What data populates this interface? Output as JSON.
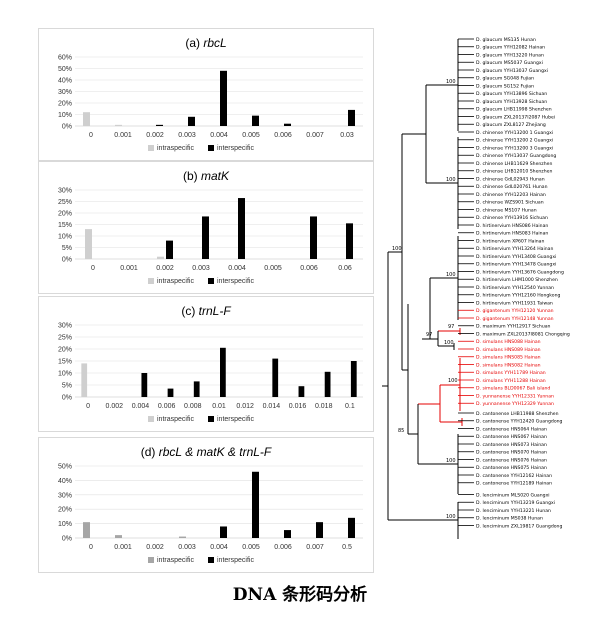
{
  "chart_data": [
    {
      "type": "bar",
      "title_prefix": "(a) ",
      "title_gene": "rbcL",
      "title_suffix": "",
      "categories": [
        "0",
        "0.001",
        "0.002",
        "0.003",
        "0.004",
        "0.005",
        "0.006",
        "0.007",
        "0.03"
      ],
      "yticks": [
        "0%",
        "10%",
        "20%",
        "30%",
        "40%",
        "50%",
        "60%"
      ],
      "ylim": [
        0,
        60
      ],
      "series": [
        {
          "name": "intraspecific",
          "values": [
            12,
            1,
            0,
            0,
            0,
            0,
            0,
            0,
            0
          ]
        },
        {
          "name": "interspecific",
          "values": [
            0,
            0,
            1,
            8,
            48,
            9,
            2,
            0,
            14
          ]
        }
      ],
      "legend_position": "bottom"
    },
    {
      "type": "bar",
      "title_prefix": "(b) ",
      "title_gene": "matK",
      "title_suffix": "",
      "categories": [
        "0",
        "0.001",
        "0.002",
        "0.003",
        "0.004",
        "0.005",
        "0.006",
        "0.06"
      ],
      "yticks": [
        "0%",
        "5%",
        "10%",
        "15%",
        "20%",
        "25%",
        "30%"
      ],
      "ylim": [
        0,
        30
      ],
      "series": [
        {
          "name": "intraspecific",
          "values": [
            13,
            0,
            1,
            0,
            0,
            0,
            0,
            0
          ]
        },
        {
          "name": "interspecific",
          "values": [
            0,
            0,
            8,
            18.5,
            26.5,
            0,
            18.5,
            15.5
          ]
        }
      ],
      "legend_position": "bottom"
    },
    {
      "type": "bar",
      "title_prefix": "(c) ",
      "title_gene": "trnL-F",
      "title_suffix": "",
      "categories": [
        "0",
        "0.002",
        "0.004",
        "0.006",
        "0.008",
        "0.01",
        "0.012",
        "0.014",
        "0.016",
        "0.018",
        "0.1"
      ],
      "yticks": [
        "0%",
        "5%",
        "10%",
        "15%",
        "20%",
        "25%",
        "30%"
      ],
      "ylim": [
        0,
        30
      ],
      "series": [
        {
          "name": "intraspecific",
          "values": [
            14,
            0,
            0,
            0,
            0,
            0,
            0,
            0,
            0,
            0,
            0
          ]
        },
        {
          "name": "interspecific",
          "values": [
            0,
            0,
            10,
            3.5,
            6.5,
            20.5,
            0,
            16,
            4.5,
            10.5,
            15
          ]
        }
      ],
      "legend_position": "bottom"
    },
    {
      "type": "bar",
      "title_prefix": "(d) ",
      "title_gene": "rbcL",
      "title_suffix": " & matK & trnL-F",
      "categories": [
        "0",
        "0.001",
        "0.002",
        "0.003",
        "0.004",
        "0.005",
        "0.006",
        "0.007",
        "0.5"
      ],
      "yticks": [
        "0%",
        "10%",
        "20%",
        "30%",
        "40%",
        "50%"
      ],
      "ylim": [
        0,
        50
      ],
      "series": [
        {
          "name": "intraspecific",
          "values": [
            11,
            2,
            0,
            1,
            0,
            0,
            0,
            0,
            0
          ]
        },
        {
          "name": "interspecific",
          "values": [
            0,
            0,
            0,
            0,
            8,
            46,
            5.5,
            11,
            14
          ]
        }
      ],
      "legend_position": "bottom"
    }
  ],
  "colors": {
    "intraspecific": "#cfcfcf",
    "intraspecific_d": "#a6a6a6",
    "interspecific": "#000000",
    "highlight": "#e60000",
    "grid": "#e0e0e0"
  },
  "tree": {
    "taxa": [
      {
        "label": "D. glaucum MS135 Hunan",
        "red": false
      },
      {
        "label": "D. glaucum YYH12082 Hainan",
        "red": false
      },
      {
        "label": "D. glaucum YYH13220 Hunan",
        "red": false
      },
      {
        "label": "D. glaucum MS5037 Guangxi",
        "red": false
      },
      {
        "label": "D. glaucum YYH13037 Guangxi",
        "red": false
      },
      {
        "label": "D. glaucum SG048 Fujian",
        "red": false
      },
      {
        "label": "D. glaucum SG152 Fujian",
        "red": false
      },
      {
        "label": "D. glaucum YYH13896 Sichuan",
        "red": false
      },
      {
        "label": "D. glaucum YYH13928 Sichuan",
        "red": false
      },
      {
        "label": "D. glaucum LHB11998 Shenzhen",
        "red": false
      },
      {
        "label": "D. glaucum ZXL20137I2087 Hubei",
        "red": false
      },
      {
        "label": "D. glaucum ZXL8127 Zhejiang",
        "red": false
      },
      {
        "label": "D. chinense YYH13200 1 Guangxi",
        "red": false
      },
      {
        "label": "D. chinense YYH13200 2 Guangxi",
        "red": false
      },
      {
        "label": "D. chinense YYH13200 3 Guangxi",
        "red": false
      },
      {
        "label": "D. chinense YYH13037 Guangdong",
        "red": false
      },
      {
        "label": "D. chinense LHB11629 Shenzhen",
        "red": false
      },
      {
        "label": "D. chinense LHB12010 Shenzhen",
        "red": false
      },
      {
        "label": "D. chinense GdL02943 Hunan",
        "red": false
      },
      {
        "label": "D. chinense GdL020761 Hunan",
        "red": false
      },
      {
        "label": "D. chinense YYH12203 Hainan",
        "red": false
      },
      {
        "label": "D. chinense WZS901 Sichuan",
        "red": false
      },
      {
        "label": "D. chinense MS107 Hunan",
        "red": false
      },
      {
        "label": "D. chinense YYH13916 Sichuan",
        "red": false
      },
      {
        "label": "D. hirtinervium HNS086 Hainan",
        "red": false
      },
      {
        "label": "D. hirtinervium HNS083 Hainan",
        "red": false
      },
      {
        "label": "D. hirtinervium XP607 Hainan",
        "red": false
      },
      {
        "label": "D. hirtinervium YYH13264 Hainan",
        "red": false
      },
      {
        "label": "D. hirtinervium YYH13408 Guangxi",
        "red": false
      },
      {
        "label": "D. hirtinervium YYH13478 Guangxi",
        "red": false
      },
      {
        "label": "D. hirtinervium YYH13676 Guangdong",
        "red": false
      },
      {
        "label": "D. hirtinervium LHM1000 Shenzhen",
        "red": false
      },
      {
        "label": "D. hirtinervium YYH12540 Yunnan",
        "red": false
      },
      {
        "label": "D. hirtinervium YYH12160 Hongkong",
        "red": false
      },
      {
        "label": "D. hirtinervium YYH11931 Taiwan",
        "red": false
      },
      {
        "label": "D. gigantenum YYH12120 Yunnan",
        "red": true
      },
      {
        "label": "D. gigantenum YYH12148 Yunnan",
        "red": true
      },
      {
        "label": "D. maximum YYH12917 Sichuan",
        "red": false
      },
      {
        "label": "D. maximum ZXL20137I8081 Chongqing",
        "red": false
      },
      {
        "label": "D. simulans HNS088 Hainan",
        "red": true
      },
      {
        "label": "D. simulans HNS089 Hainan",
        "red": true
      },
      {
        "label": "D. simulans HNS085 Hainan",
        "red": true
      },
      {
        "label": "D. simulans HNS082 Hainan",
        "red": true
      },
      {
        "label": "D. simulans YYH11789 Hainan",
        "red": true
      },
      {
        "label": "D. simulans YYH11288 Hainan",
        "red": true
      },
      {
        "label": "D. simulans BLD0067 Bali island",
        "red": true
      },
      {
        "label": "D. yunnanense YYH12331 Yunnan",
        "red": true
      },
      {
        "label": "D. yunnanense YYH12329 Yunnan",
        "red": true
      },
      {
        "label": "D. cantonense LHB11988 Shenzhen",
        "red": false
      },
      {
        "label": "D. cantonense YYH12420 Guangdong",
        "red": false
      },
      {
        "label": "D. cantonense HNS064 Hainan",
        "red": false
      },
      {
        "label": "D. cantonense HNS067 Hainan",
        "red": false
      },
      {
        "label": "D. cantonense HNS073 Hainan",
        "red": false
      },
      {
        "label": "D. cantonense HNS070 Hainan",
        "red": false
      },
      {
        "label": "D. cantonense HNS076 Hainan",
        "red": false
      },
      {
        "label": "D. cantonense HNS075 Hainan",
        "red": false
      },
      {
        "label": "D. cantonense YYH12162 Hainan",
        "red": false
      },
      {
        "label": "D. cantonense YYH12189 Hainan",
        "red": false
      },
      {
        "label": "D. lenciminum MLS020 Guangxi",
        "red": false
      },
      {
        "label": "D. lenciminum YYH13219 Guangxi",
        "red": false
      },
      {
        "label": "D. lenciminum YYH13221 Hunan",
        "red": false
      },
      {
        "label": "D. lenciminum MS038 Hunan",
        "red": false
      },
      {
        "label": "D. lenciminum ZXL19817 Guangdong",
        "red": false
      }
    ],
    "support": [
      {
        "id": "s1",
        "value": "100"
      },
      {
        "id": "s2",
        "value": "100"
      },
      {
        "id": "s3",
        "value": "100"
      },
      {
        "id": "s4",
        "value": "97"
      },
      {
        "id": "s5",
        "value": "97"
      },
      {
        "id": "s6",
        "value": "100"
      },
      {
        "id": "s7",
        "value": "100"
      },
      {
        "id": "s8",
        "value": "100"
      },
      {
        "id": "s9",
        "value": "85"
      },
      {
        "id": "s10",
        "value": "100"
      },
      {
        "id": "s11",
        "value": "100"
      }
    ]
  },
  "caption": "DNA 条形码分析"
}
